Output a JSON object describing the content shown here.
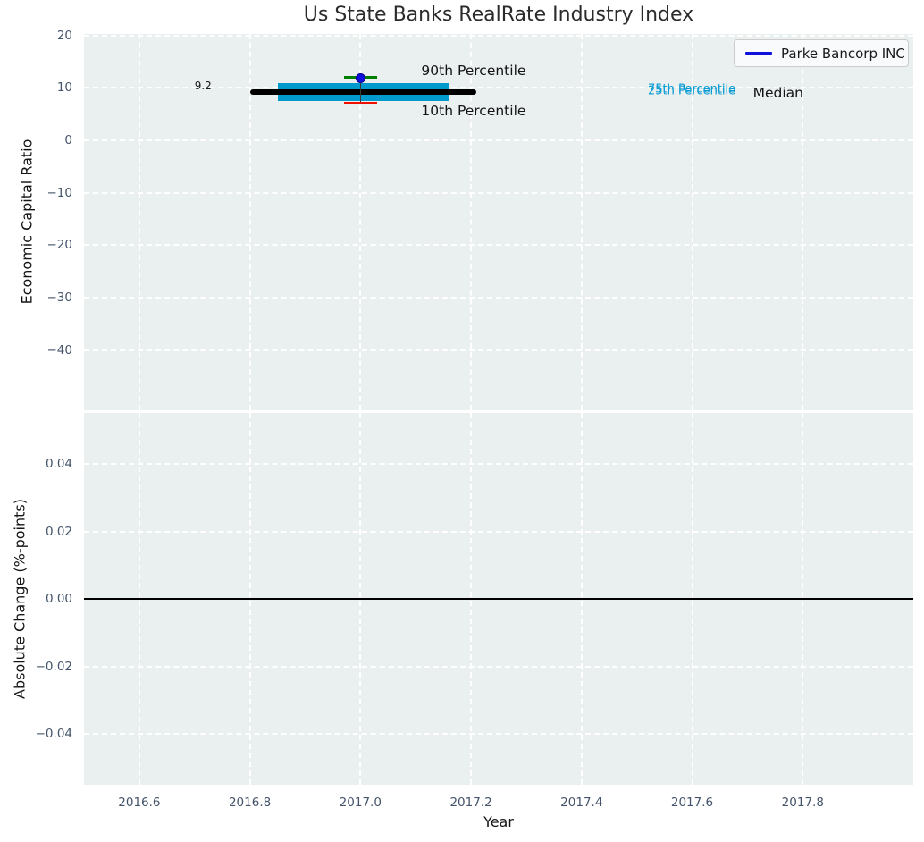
{
  "figure": {
    "title": "Us State Banks RealRate Industry Index"
  },
  "colors": {
    "axes_bg": "#eaefef",
    "grid": "#ffffff",
    "tick_label": "#44546a",
    "text": "#141414",
    "box_fill": "#009acd",
    "median_line": "#000000",
    "p90_marker": "#007f00",
    "p10_marker": "#ee1100",
    "company_marker": "#1010dc",
    "whisker": "#3a3a3a",
    "zero_line": "#000000",
    "percentile_label": "#0c9cd4"
  },
  "chart_data": [
    {
      "type": "box",
      "panel": "top",
      "title": "Us State Banks RealRate Industry Index",
      "xlabel": "Year",
      "ylabel": "Economic Capital Ratio",
      "xlim": [
        2016.5,
        2018.0
      ],
      "ylim": [
        -51.5,
        20.3
      ],
      "grid": "white-dashed",
      "legend": {
        "label": "Parke Bancorp INC",
        "position": "upper right"
      },
      "xticks": [
        {
          "v": 2016.6,
          "label": "2016.6"
        },
        {
          "v": 2016.8,
          "label": "2016.8"
        },
        {
          "v": 2017.0,
          "label": "2017.0"
        },
        {
          "v": 2017.2,
          "label": "2017.2"
        },
        {
          "v": 2017.4,
          "label": "2017.4"
        },
        {
          "v": 2017.6,
          "label": "2017.6"
        },
        {
          "v": 2017.8,
          "label": "2017.8"
        }
      ],
      "yticks": [
        {
          "v": 20,
          "label": "20"
        },
        {
          "v": 10,
          "label": "10"
        },
        {
          "v": 0,
          "label": "0"
        },
        {
          "v": -10,
          "label": "−10"
        },
        {
          "v": -20,
          "label": "−20"
        },
        {
          "v": -30,
          "label": "−30"
        },
        {
          "v": -40,
          "label": "−40"
        }
      ],
      "distribution": {
        "year": 2017.0,
        "p90": 12.0,
        "p75": 11.0,
        "median": 9.2,
        "p25": 7.5,
        "p10": 7.2,
        "median_span": [
          2016.8,
          2017.21
        ],
        "box_span": [
          2016.85,
          2017.16
        ],
        "marker_span": [
          2016.97,
          2017.03
        ]
      },
      "company_series": {
        "name": "Parke Bancorp INC",
        "points": [
          {
            "x": 2017.0,
            "y": 11.9
          }
        ]
      },
      "annotations": [
        {
          "text": "9.2",
          "x": 2016.7,
          "y": 10.5,
          "color": "#1a1a1a",
          "size": 12
        },
        {
          "text": "90th Percentile",
          "x": 2017.11,
          "y": 13.4,
          "color": "#141414",
          "size": 15.5
        },
        {
          "text": "10th Percentile",
          "x": 2017.11,
          "y": 5.6,
          "color": "#141414",
          "size": 15.5
        },
        {
          "text": "75th Percentile",
          "x": 2017.52,
          "y": 9.75,
          "color": "#0c9cd4",
          "size": 13
        },
        {
          "text": "25th Percentile",
          "x": 2017.52,
          "y": 9.35,
          "color": "#0c9cd4",
          "size": 13
        },
        {
          "text": "Median",
          "x": 2017.71,
          "y": 9.0,
          "color": "#141414",
          "size": 15.5
        }
      ]
    },
    {
      "type": "line",
      "panel": "bottom",
      "xlabel": "Year",
      "ylabel": "Absolute Change (%-points)",
      "xlim": [
        2016.5,
        2018.0
      ],
      "ylim": [
        -0.055,
        0.0551
      ],
      "grid": "white-dashed",
      "yticks": [
        {
          "v": 0.04,
          "label": "0.04"
        },
        {
          "v": 0.02,
          "label": "0.02"
        },
        {
          "v": 0.0,
          "label": "0.00"
        },
        {
          "v": -0.02,
          "label": "−0.02"
        },
        {
          "v": -0.04,
          "label": "−0.04"
        }
      ],
      "zero_line": 0.0,
      "series": []
    }
  ]
}
